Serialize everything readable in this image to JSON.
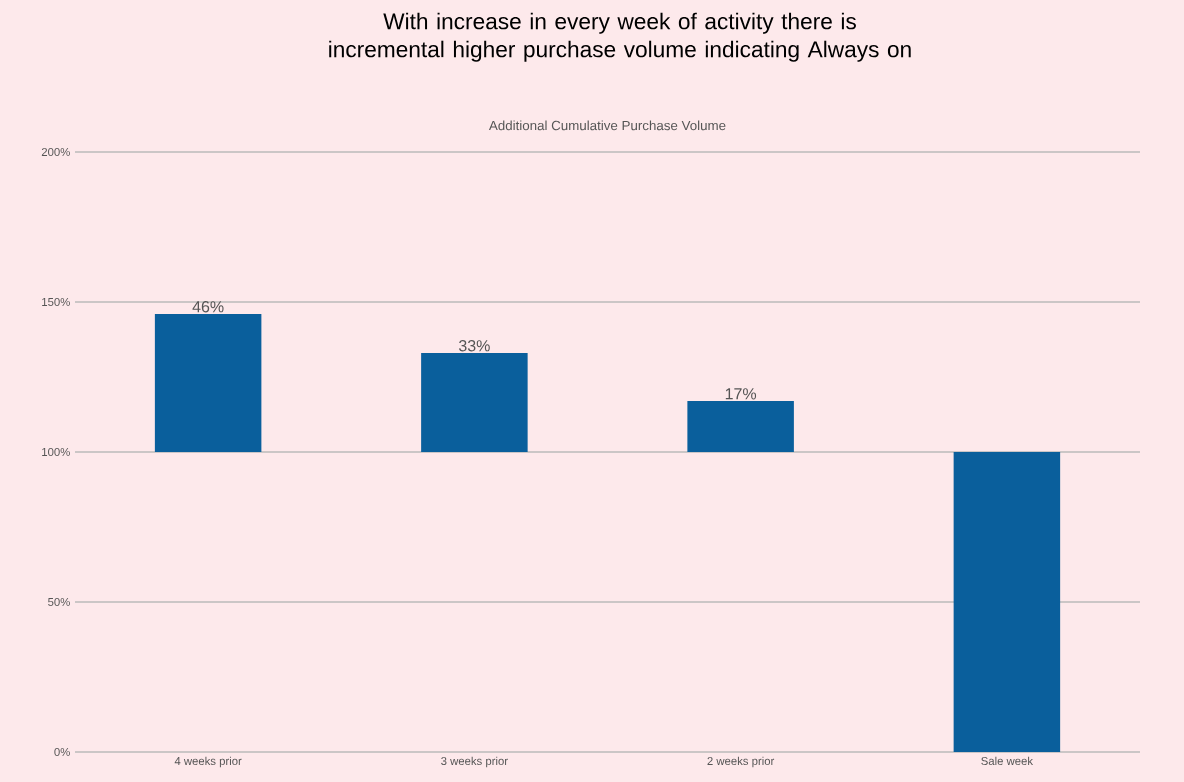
{
  "chart_data": {
    "type": "bar",
    "title": "With increase in every week of activity there is incremental higher purchase volume indicating Always on",
    "subtitle": "Additional Cumulative Purchase Volume",
    "categories": [
      "4 weeks prior",
      "3 weeks prior",
      "2 weeks prior",
      "Sale week"
    ],
    "values": [
      46,
      33,
      17,
      100
    ],
    "base": [
      100,
      100,
      100,
      0
    ],
    "value_labels": [
      "46%",
      "33%",
      "17%",
      null
    ],
    "color": "#0a5f9c",
    "ylim": [
      0,
      200
    ],
    "yticks": [
      {
        "value": 0,
        "label": "0%"
      },
      {
        "value": 50,
        "label": "50%"
      },
      {
        "value": 100,
        "label": "100%"
      },
      {
        "value": 150,
        "label": "150%"
      },
      {
        "value": 200,
        "label": "200%"
      }
    ],
    "grid": "y"
  }
}
